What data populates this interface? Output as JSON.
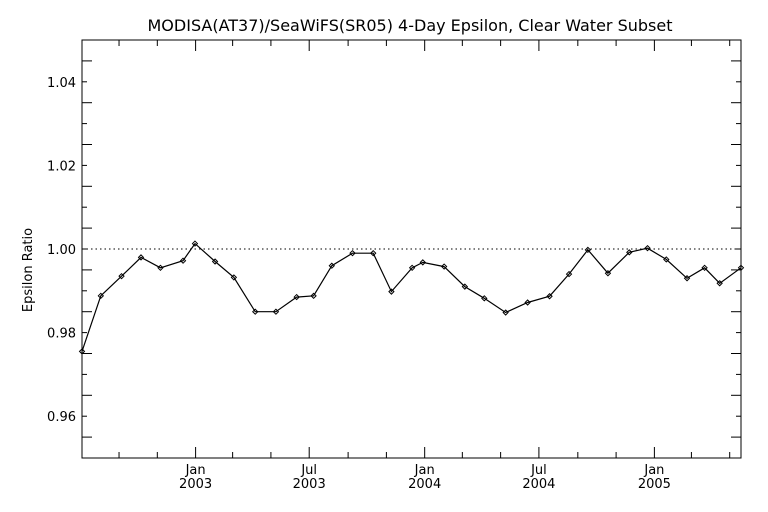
{
  "chart_data": {
    "type": "line",
    "title": "MODISA(AT37)/SeaWiFS(SR05) 4-Day Epsilon, Clear Water Subset",
    "xlabel": "",
    "ylabel": "Epsilon Ratio",
    "ylim": [
      0.95,
      1.05
    ],
    "xlim": [
      "2002-07-04",
      "2005-05-19"
    ],
    "grid": false,
    "yticks": [
      "0.96",
      "0.98",
      "1.00",
      "1.02",
      "1.04"
    ],
    "xticks": [
      {
        "month": "Jan",
        "year": "2003",
        "date": "2003-01-01"
      },
      {
        "month": "Jul",
        "year": "2003",
        "date": "2003-07-01"
      },
      {
        "month": "Jan",
        "year": "2004",
        "date": "2004-01-01"
      },
      {
        "month": "Jul",
        "year": "2004",
        "date": "2004-07-01"
      },
      {
        "month": "Jan",
        "year": "2005",
        "date": "2005-01-01"
      }
    ],
    "reference_line": 1.0,
    "series": [
      {
        "x": [
          "2002-07-04",
          "2002-08-03",
          "2002-09-05",
          "2002-10-06",
          "2002-11-06",
          "2002-12-12",
          "2002-12-31",
          "2003-02-01",
          "2003-03-03",
          "2003-04-06",
          "2003-05-09",
          "2003-06-11",
          "2003-07-08",
          "2003-08-06",
          "2003-09-08",
          "2003-10-11",
          "2003-11-09",
          "2003-12-12",
          "2003-12-29",
          "2004-02-01",
          "2004-03-05",
          "2004-04-05",
          "2004-05-09",
          "2004-06-13",
          "2004-07-18",
          "2004-08-18",
          "2004-09-17",
          "2004-10-19",
          "2004-11-22",
          "2004-12-21",
          "2005-01-20",
          "2005-02-22",
          "2005-03-22",
          "2005-04-15",
          "2005-05-19"
        ],
        "values": [
          0.9755,
          0.9888,
          0.9935,
          0.998,
          0.9955,
          0.9972,
          1.0013,
          0.997,
          0.9932,
          0.985,
          0.985,
          0.9885,
          0.9888,
          0.996,
          0.999,
          0.999,
          0.9898,
          0.9955,
          0.9968,
          0.9958,
          0.991,
          0.9882,
          0.9848,
          0.9872,
          0.9887,
          0.994,
          0.9998,
          0.9942,
          0.9992,
          1.0002,
          0.9975,
          0.993,
          0.9955,
          0.9918,
          0.9955
        ]
      }
    ]
  }
}
